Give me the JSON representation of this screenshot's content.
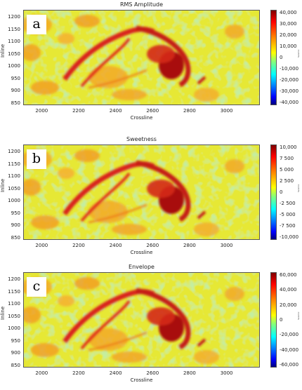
{
  "chart_data": [
    {
      "type": "heatmap",
      "letter": "a",
      "title": "RMS Amplitude",
      "xlabel": "Crossline",
      "ylabel": "Inline",
      "xticks": [
        "2000",
        "2200",
        "2400",
        "2600",
        "2800",
        "3000"
      ],
      "yticks": [
        "1200",
        "1150",
        "1100",
        "1050",
        "1000",
        "950",
        "900",
        "850"
      ],
      "colorbar_ticks": [
        "40,000",
        "30,000",
        "20,000",
        "10,000",
        "0",
        "-10,000",
        "-20,000",
        "-30,000",
        "-40,000"
      ],
      "colorbar_label": "Seismic",
      "colormap": "jet",
      "xlim": [
        1900,
        3180
      ],
      "ylim": [
        840,
        1230
      ],
      "clim": [
        -45000,
        45000
      ]
    },
    {
      "type": "heatmap",
      "letter": "b",
      "title": "Sweetness",
      "xlabel": "Crossline",
      "ylabel": "Inline",
      "xticks": [
        "2000",
        "2200",
        "2400",
        "2600",
        "2800",
        "3000"
      ],
      "yticks": [
        "1200",
        "1150",
        "1100",
        "1050",
        "1000",
        "950",
        "900",
        "850"
      ],
      "colorbar_ticks": [
        "10,000",
        "7 500",
        "5 000",
        "2 500",
        "0",
        "-2 500",
        "-5 000",
        "-7 500",
        "-10,000"
      ],
      "colorbar_label": "Seismic",
      "colormap": "jet",
      "xlim": [
        1900,
        3180
      ],
      "ylim": [
        840,
        1230
      ],
      "clim": [
        -10500,
        10500
      ]
    },
    {
      "type": "heatmap",
      "letter": "c",
      "title": "Envelope",
      "xlabel": "Crossline",
      "ylabel": "Inline",
      "xticks": [
        "2000",
        "2200",
        "2400",
        "2600",
        "2800",
        "3000"
      ],
      "yticks": [
        "1200",
        "1150",
        "1100",
        "1050",
        "1000",
        "950",
        "900",
        "850"
      ],
      "colorbar_ticks": [
        "60,000",
        "40,000",
        "20,000",
        "0",
        "-20,000",
        "-40,000",
        "-60,000"
      ],
      "colorbar_label": "Seismic",
      "colormap": "jet",
      "xlim": [
        1900,
        3180
      ],
      "ylim": [
        840,
        1230
      ],
      "clim": [
        -68000,
        68000
      ]
    }
  ]
}
